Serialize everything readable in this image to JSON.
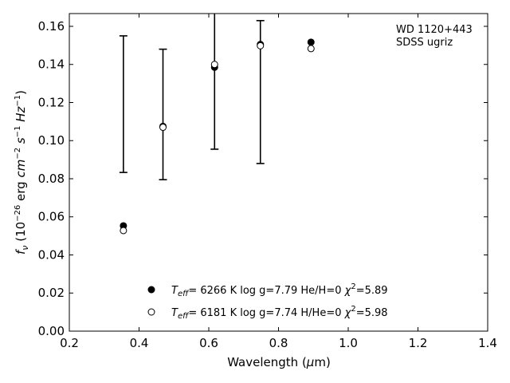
{
  "chart_data": {
    "type": "scatter",
    "title": "",
    "xlabel": "Wavelength (μm)",
    "ylabel": "f_ν (10^-26 erg cm^-2 s^-1 Hz^-1)",
    "xlim": [
      0.2,
      1.4
    ],
    "ylim": [
      0.0,
      0.1667
    ],
    "x_ticks": [
      0.2,
      0.4,
      0.6,
      0.8,
      1.0,
      1.2,
      1.4
    ],
    "x_tick_labels": [
      "0.2",
      "0.4",
      "0.6",
      "0.8",
      "1.0",
      "1.2",
      "1.4"
    ],
    "y_ticks": [
      0.0,
      0.02,
      0.04,
      0.06,
      0.08,
      0.1,
      0.12,
      0.14,
      0.16
    ],
    "y_tick_labels": [
      "0.00",
      "0.02",
      "0.04",
      "0.06",
      "0.08",
      "0.10",
      "0.12",
      "0.14",
      "0.16"
    ],
    "grid": false,
    "legend_position": "bottom-center",
    "annotation_lines": [
      "WD 1120+443",
      "SDSS ugriz"
    ],
    "observed": [
      {
        "x": 0.3551,
        "ylow": 0.0833,
        "yhigh": 0.155
      },
      {
        "x": 0.4686,
        "ylow": 0.0795,
        "yhigh": 0.148
      },
      {
        "x": 0.6166,
        "ylow": 0.0955,
        "yhigh": 0.172
      },
      {
        "x": 0.748,
        "ylow": 0.088,
        "yhigh": 0.163
      }
    ],
    "series": [
      {
        "marker": "filled",
        "legend_teff": "6266 K",
        "legend_logg": "log g=7.79",
        "legend_comp": "He/H=0",
        "legend_chi": "=5.89",
        "points": [
          {
            "x": 0.3551,
            "y": 0.0553
          },
          {
            "x": 0.4686,
            "y": 0.1075
          },
          {
            "x": 0.6166,
            "y": 0.1385
          },
          {
            "x": 0.748,
            "y": 0.1505
          },
          {
            "x": 0.8932,
            "y": 0.1517
          }
        ]
      },
      {
        "marker": "open",
        "legend_teff": "6181 K",
        "legend_logg": "log g=7.74",
        "legend_comp": "H/He=0",
        "legend_chi": "=5.98",
        "points": [
          {
            "x": 0.3551,
            "y": 0.0528
          },
          {
            "x": 0.4686,
            "y": 0.107
          },
          {
            "x": 0.6166,
            "y": 0.14
          },
          {
            "x": 0.748,
            "y": 0.1498
          },
          {
            "x": 0.8932,
            "y": 0.1483
          }
        ]
      }
    ]
  }
}
